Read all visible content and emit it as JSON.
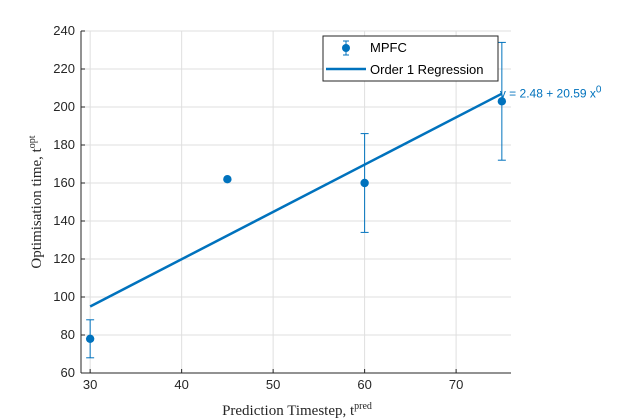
{
  "chart_data": {
    "type": "scatter",
    "xlim": [
      29,
      76
    ],
    "ylim": [
      60,
      240
    ],
    "xticks": [
      30,
      40,
      50,
      60,
      70
    ],
    "yticks": [
      60,
      80,
      100,
      120,
      140,
      160,
      180,
      200,
      220,
      240
    ],
    "grid": true,
    "legend_position": "top-right",
    "xlabel": "Prediction Timestep, t",
    "xlabel_sup": "pred",
    "ylabel": "Optimisation time, t",
    "ylabel_sup": "opt",
    "colors": {
      "data": "#0072bd"
    },
    "series": [
      {
        "name": "MPFC",
        "kind": "errorbar",
        "x": [
          30,
          45,
          60,
          75
        ],
        "y": [
          78,
          162,
          160,
          203
        ],
        "err_low": [
          68,
          162,
          134,
          172
        ],
        "err_high": [
          88,
          162,
          186,
          234
        ]
      },
      {
        "name": "Order 1 Regression",
        "kind": "line",
        "x": [
          30,
          75
        ],
        "y": [
          95,
          207
        ]
      }
    ],
    "annotation": {
      "text": "y = 2.48 + 20.59 x",
      "sup": "0",
      "x": 75,
      "y": 207
    }
  }
}
